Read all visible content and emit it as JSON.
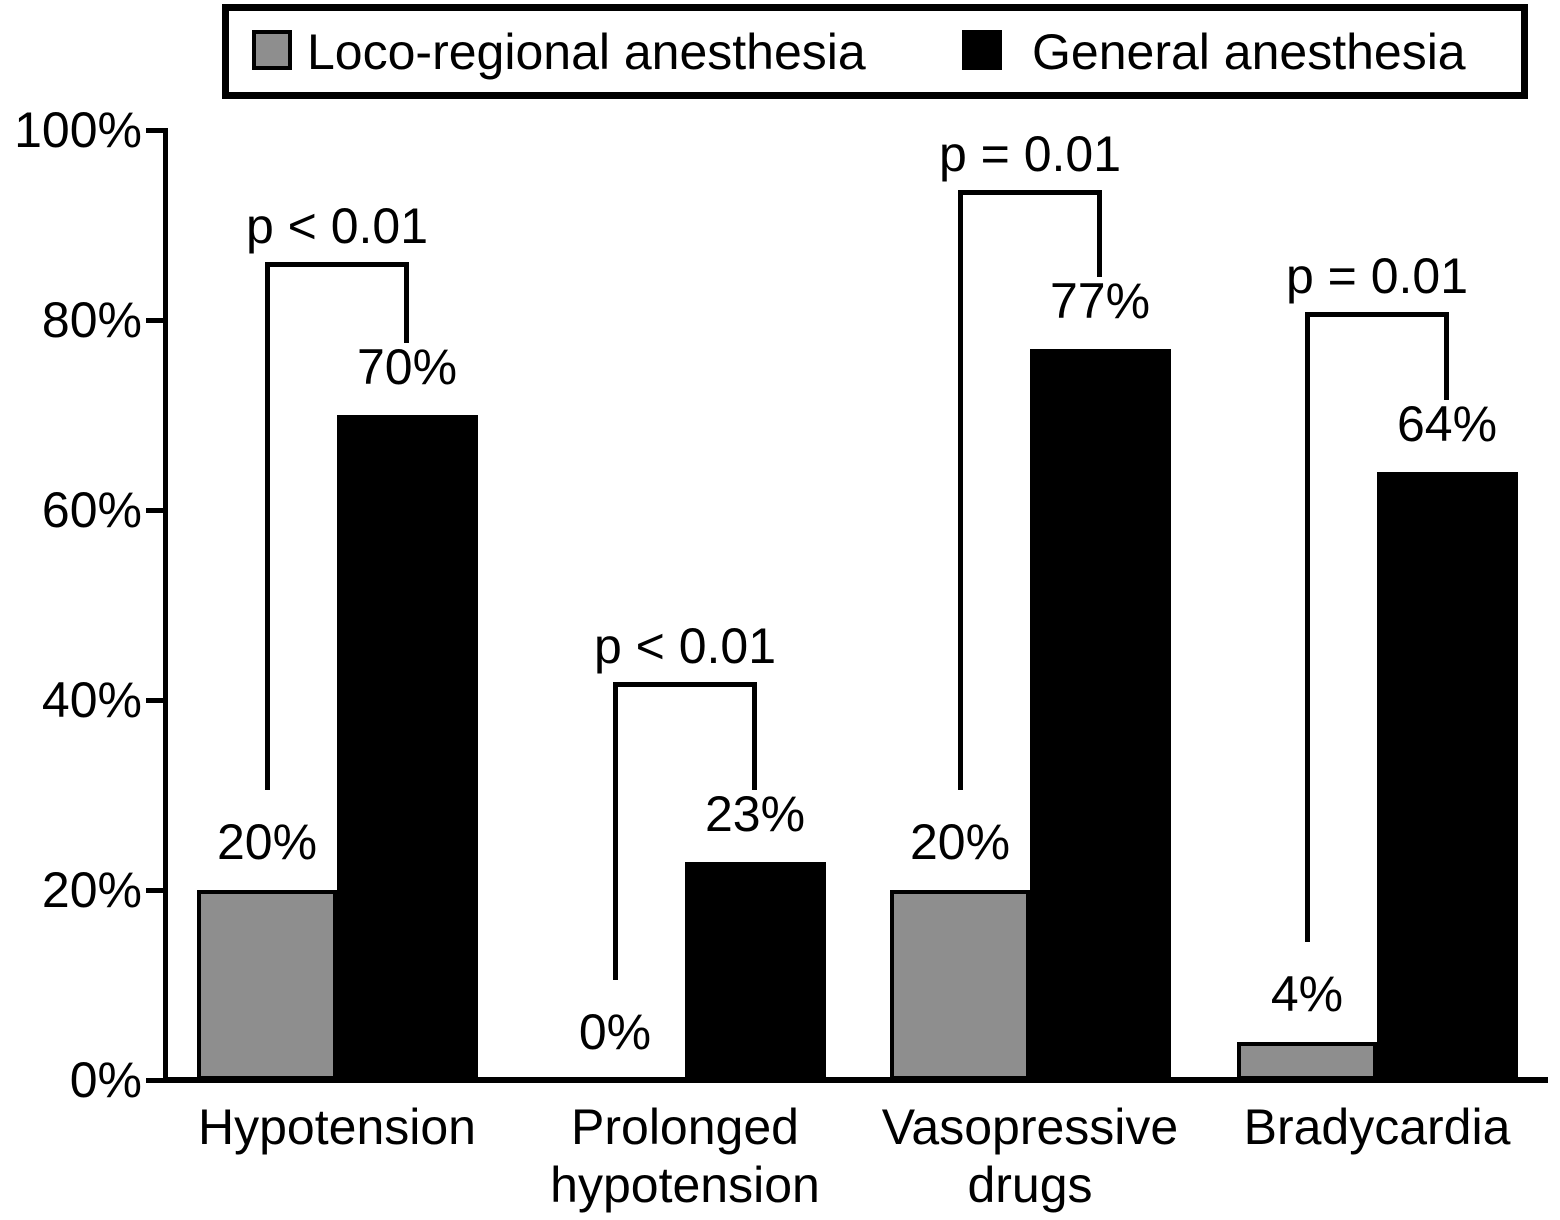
{
  "legend": {
    "items": [
      {
        "key": "loco-regional",
        "label": "Loco-regional anesthesia",
        "color": "#8e8e8e"
      },
      {
        "key": "general",
        "label": "General anesthesia",
        "color": "#000000"
      }
    ]
  },
  "chart_data": {
    "type": "bar",
    "title": "",
    "categories": [
      "Hypotension",
      "Prolonged hypotension",
      "Vasopressive drugs",
      "Bradycardia"
    ],
    "category_label_lines": [
      [
        "Hypotension"
      ],
      [
        "Prolonged",
        "hypotension"
      ],
      [
        "Vasopressive",
        "drugs"
      ],
      [
        "Bradycardia"
      ]
    ],
    "series": [
      {
        "name": "Loco-regional anesthesia",
        "key": "loco-regional-anesthesia",
        "color": "#8e8e8e",
        "values": [
          20,
          0,
          20,
          4
        ],
        "value_labels": [
          "20%",
          "0%",
          "20%",
          "4%"
        ]
      },
      {
        "name": "General anesthesia",
        "key": "general-anesthesia",
        "color": "#000000",
        "values": [
          70,
          23,
          77,
          64
        ],
        "value_labels": [
          "70%",
          "23%",
          "77%",
          "64%"
        ]
      }
    ],
    "p_value_annotations": [
      "p < 0.01",
      "p < 0.01",
      "p = 0.01",
      "p = 0.01"
    ],
    "y_axis": {
      "tick_labels": [
        "0%",
        "20%",
        "40%",
        "60%",
        "80%",
        "100%"
      ],
      "tick_values": [
        0,
        20,
        40,
        60,
        80,
        100
      ]
    },
    "ylim": [
      0,
      100
    ],
    "grid": false,
    "legend_position": "top",
    "bar_colors": {
      "loco_regional": "#8e8e8e",
      "general": "#000000"
    },
    "axis_color": "#000000"
  }
}
